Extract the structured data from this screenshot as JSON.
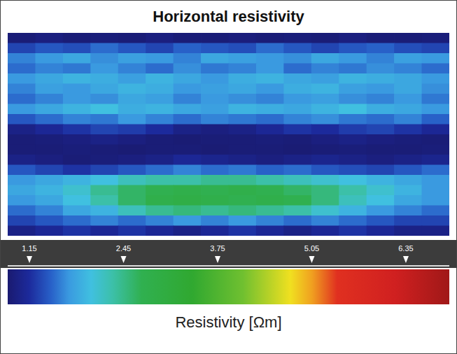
{
  "chart_data": {
    "type": "heatmap",
    "title": "Horizontal resistivity",
    "tick_labels": false,
    "cells": [
      [
        0.9,
        0.95,
        0.9,
        0.92,
        0.9,
        0.95,
        0.9,
        0.9,
        0.93,
        0.9,
        0.92,
        0.9,
        0.95,
        0.9,
        0.9,
        0.92
      ],
      [
        1.3,
        1.4,
        1.35,
        1.5,
        1.4,
        1.3,
        1.45,
        1.4,
        1.35,
        1.5,
        1.4,
        1.3,
        1.4,
        1.45,
        1.35,
        1.3
      ],
      [
        1.6,
        1.7,
        1.8,
        1.65,
        1.75,
        1.7,
        1.6,
        1.8,
        1.75,
        1.7,
        1.65,
        1.8,
        1.7,
        1.6,
        1.75,
        1.7
      ],
      [
        1.5,
        1.6,
        1.55,
        1.7,
        1.6,
        1.5,
        1.65,
        1.55,
        1.6,
        1.7,
        1.5,
        1.6,
        1.55,
        1.65,
        1.6,
        1.5
      ],
      [
        1.7,
        1.8,
        1.9,
        1.85,
        1.75,
        1.9,
        1.8,
        1.7,
        1.85,
        1.9,
        1.8,
        1.75,
        1.9,
        1.85,
        1.8,
        1.7
      ],
      [
        1.6,
        1.75,
        1.7,
        1.8,
        1.9,
        1.85,
        1.7,
        1.75,
        1.8,
        1.7,
        1.85,
        1.9,
        1.75,
        1.7,
        1.8,
        1.65
      ],
      [
        1.5,
        1.6,
        1.7,
        1.65,
        1.8,
        1.75,
        1.6,
        1.7,
        1.65,
        1.6,
        1.7,
        1.75,
        1.65,
        1.6,
        1.7,
        1.55
      ],
      [
        1.7,
        1.8,
        1.9,
        2.0,
        1.85,
        1.9,
        1.8,
        1.75,
        1.9,
        1.85,
        1.8,
        1.9,
        2.0,
        1.85,
        1.8,
        1.7
      ],
      [
        1.4,
        1.5,
        1.6,
        1.55,
        1.7,
        1.6,
        1.5,
        1.6,
        1.55,
        1.5,
        1.6,
        1.65,
        1.55,
        1.5,
        1.6,
        1.45
      ],
      [
        1.0,
        1.1,
        1.2,
        1.3,
        1.25,
        1.15,
        1.0,
        0.95,
        1.0,
        1.1,
        1.2,
        1.15,
        1.25,
        1.3,
        1.2,
        1.1
      ],
      [
        0.9,
        0.92,
        0.95,
        1.0,
        0.95,
        0.9,
        0.88,
        0.9,
        0.9,
        0.92,
        0.9,
        0.95,
        1.0,
        0.95,
        0.92,
        0.9
      ],
      [
        0.9,
        0.9,
        0.92,
        0.9,
        0.88,
        0.9,
        0.9,
        0.88,
        0.9,
        0.9,
        0.88,
        0.9,
        0.92,
        0.9,
        0.9,
        0.92
      ],
      [
        1.0,
        0.95,
        0.9,
        0.92,
        0.95,
        1.0,
        1.1,
        1.05,
        1.0,
        0.95,
        1.0,
        1.05,
        1.0,
        0.95,
        1.0,
        1.05
      ],
      [
        1.4,
        1.3,
        1.2,
        1.3,
        1.4,
        1.5,
        1.6,
        1.5,
        1.55,
        1.45,
        1.5,
        1.4,
        1.35,
        1.3,
        1.4,
        1.5
      ],
      [
        1.7,
        1.8,
        1.9,
        2.0,
        2.2,
        2.3,
        2.3,
        2.4,
        2.4,
        2.3,
        2.2,
        2.1,
        2.0,
        1.9,
        1.8,
        1.7
      ],
      [
        1.8,
        1.9,
        2.1,
        2.4,
        2.6,
        2.7,
        2.8,
        2.7,
        2.8,
        2.7,
        2.6,
        2.5,
        2.3,
        2.1,
        1.9,
        1.7
      ],
      [
        1.7,
        1.8,
        2.0,
        2.3,
        2.6,
        2.8,
        2.9,
        2.8,
        2.7,
        2.8,
        2.7,
        2.5,
        2.2,
        2.0,
        1.8,
        1.7
      ],
      [
        1.5,
        1.6,
        1.8,
        1.9,
        2.2,
        2.4,
        2.5,
        2.4,
        2.5,
        2.4,
        2.3,
        2.1,
        1.9,
        1.7,
        1.6,
        1.5
      ],
      [
        1.3,
        1.4,
        1.5,
        1.6,
        1.5,
        1.6,
        1.7,
        1.6,
        1.7,
        1.6,
        1.5,
        1.6,
        1.5,
        1.4,
        1.3,
        1.3
      ],
      [
        1.0,
        1.1,
        1.2,
        1.1,
        1.2,
        1.1,
        1.0,
        1.1,
        1.2,
        1.1,
        1.0,
        1.1,
        1.2,
        1.1,
        1.0,
        1.0
      ]
    ],
    "colorbar_label": "Resistivity [Ωm]",
    "colorbar_range": [
      0.85,
      6.95
    ],
    "colorbar_ticks": [
      1.15,
      2.45,
      3.75,
      5.05,
      6.35
    ]
  }
}
